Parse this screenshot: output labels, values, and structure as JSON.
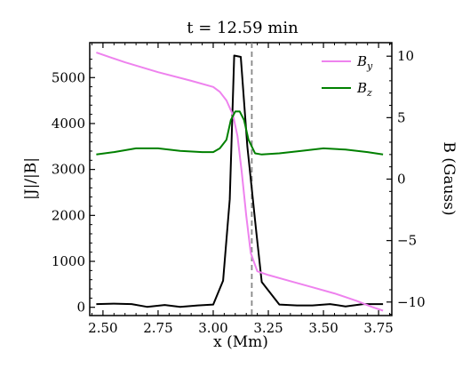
{
  "chart_data": {
    "type": "line",
    "title": "t = 12.59 min",
    "xlabel": "x (Mm)",
    "ylabel_left": "|J|/|B|",
    "ylabel_right": "B (Gauss)",
    "xlim": [
      2.44,
      3.81
    ],
    "ylim_left": [
      -180,
      5760
    ],
    "ylim_right": [
      -11.1,
      11.1
    ],
    "x_ticks": [
      2.5,
      2.75,
      3.0,
      3.25,
      3.5,
      3.75
    ],
    "x_tick_labels": [
      "2.50",
      "2.75",
      "3.00",
      "3.25",
      "3.50",
      "3.75"
    ],
    "y_left_ticks": [
      0,
      1000,
      2000,
      3000,
      4000,
      5000
    ],
    "y_left_tick_labels": [
      "0",
      "1000",
      "2000",
      "3000",
      "4000",
      "5000"
    ],
    "y_right_ticks": [
      -10,
      -5,
      0,
      5,
      10
    ],
    "y_right_tick_labels": [
      "−10",
      "−5",
      "0",
      "5",
      "10"
    ],
    "vline_x": 3.175,
    "legend_position": "top-right",
    "grid": false,
    "series": [
      {
        "name": "|J|/|B|",
        "axis": "left",
        "color": "#000000",
        "x": [
          2.47,
          2.55,
          2.63,
          2.7,
          2.78,
          2.85,
          2.93,
          3.0,
          3.045,
          3.075,
          3.095,
          3.125,
          3.155,
          3.195,
          3.22,
          3.3,
          3.38,
          3.45,
          3.53,
          3.6,
          3.68,
          3.77
        ],
        "y": [
          70,
          80,
          70,
          10,
          50,
          10,
          40,
          60,
          580,
          2350,
          5480,
          5450,
          3500,
          1650,
          550,
          60,
          40,
          40,
          70,
          20,
          70,
          70
        ]
      },
      {
        "name": "B_y",
        "axis": "right",
        "color": "#ee82ee",
        "x": [
          2.47,
          2.6,
          2.75,
          2.9,
          3.0,
          3.03,
          3.06,
          3.09,
          3.11,
          3.13,
          3.15,
          3.17,
          3.2,
          3.25,
          3.35,
          3.45,
          3.55,
          3.65,
          3.72,
          3.77
        ],
        "y": [
          10.3,
          9.5,
          8.7,
          8.0,
          7.5,
          7.1,
          6.4,
          5.2,
          3.5,
          0.5,
          -3.0,
          -6.0,
          -7.5,
          -7.8,
          -8.3,
          -8.8,
          -9.3,
          -9.9,
          -10.4,
          -10.7
        ]
      },
      {
        "name": "B_z",
        "axis": "right",
        "color": "#008000",
        "x": [
          2.47,
          2.55,
          2.65,
          2.75,
          2.85,
          2.95,
          3.0,
          3.03,
          3.06,
          3.08,
          3.1,
          3.12,
          3.14,
          3.16,
          3.19,
          3.22,
          3.3,
          3.4,
          3.5,
          3.6,
          3.7,
          3.77
        ],
        "y": [
          2.0,
          2.2,
          2.5,
          2.5,
          2.3,
          2.2,
          2.2,
          2.5,
          3.2,
          4.8,
          5.5,
          5.5,
          4.8,
          3.2,
          2.1,
          2.0,
          2.1,
          2.3,
          2.5,
          2.4,
          2.2,
          2.0
        ]
      }
    ]
  },
  "legend": {
    "by_main": "B",
    "by_sub": "y",
    "bz_main": "B",
    "bz_sub": "z"
  }
}
